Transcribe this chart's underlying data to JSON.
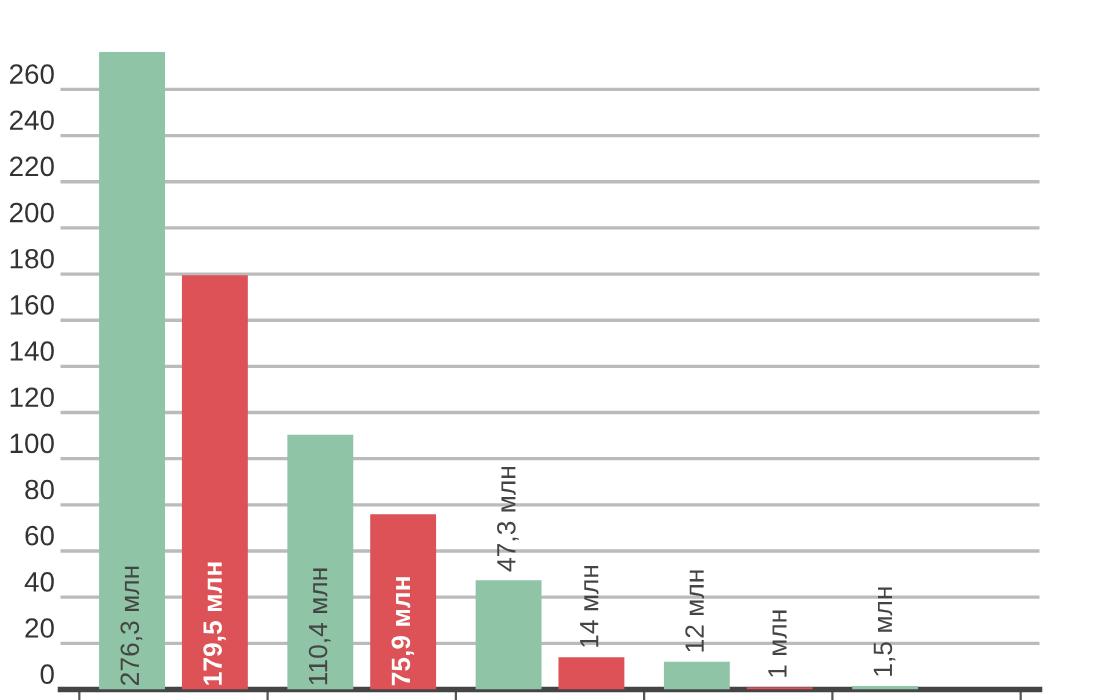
{
  "chart_data": {
    "type": "bar",
    "categories": [
      null,
      null,
      null,
      null,
      null
    ],
    "series": [
      {
        "color": "#8fc4a6",
        "values": [
          276.3,
          110.4,
          47.3,
          12,
          1.5
        ],
        "value_labels": [
          "276,3 млн",
          "110,4 млн",
          "47,3 млн",
          "12 млн",
          "1,5 млн"
        ]
      },
      {
        "color": "#dc5256",
        "values": [
          179.5,
          75.9,
          14,
          1,
          null
        ],
        "value_labels": [
          "179,5 млн",
          "75,9 млн",
          "14 млн",
          "1 млн",
          null
        ]
      }
    ],
    "ylim": [
      0,
      276.3
    ],
    "yticks": [
      0,
      20,
      40,
      60,
      80,
      100,
      120,
      140,
      160,
      180,
      200,
      220,
      240,
      260
    ],
    "grid": "y",
    "legend": false
  }
}
